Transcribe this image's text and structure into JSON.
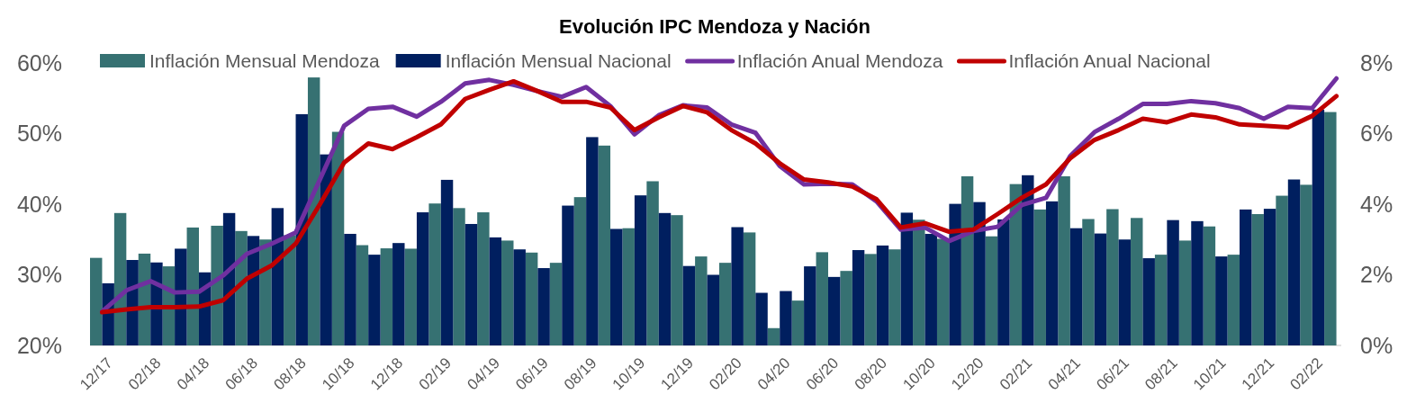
{
  "chart_data": {
    "type": "bar",
    "title": "Evolución IPC Mendoza y Nación",
    "categories": [
      "12/17",
      null,
      "02/18",
      null,
      "04/18",
      null,
      "06/18",
      null,
      "08/18",
      null,
      "10/18",
      null,
      "12/18",
      null,
      "02/19",
      null,
      "04/19",
      null,
      "06/19",
      null,
      "08/19",
      null,
      "10/19",
      null,
      "12/19",
      null,
      "02/20",
      null,
      "04/20",
      null,
      "06/20",
      null,
      "08/20",
      null,
      "10/20",
      null,
      "12/20",
      null,
      "02/21",
      null,
      "04/21",
      null,
      "06/21",
      null,
      "08/21",
      null,
      "10/21",
      null,
      "12/21",
      null,
      "02/22",
      null
    ],
    "series": [
      {
        "name": "Inflación Mensual Mendoza",
        "axis": "y2",
        "color": "#367172",
        "values": [
          2.48,
          3.75,
          2.6,
          2.24,
          3.34,
          3.39,
          3.24,
          3.0,
          3.12,
          7.59,
          6.05,
          2.84,
          2.75,
          2.74,
          4.02,
          3.89,
          3.77,
          2.97,
          2.63,
          2.34,
          4.2,
          5.66,
          3.32,
          4.65,
          3.69,
          2.52,
          2.34,
          3.2,
          0.49,
          1.27,
          2.64,
          2.11,
          2.59,
          2.72,
          3.56,
          3.02,
          4.79,
          3.09,
          4.57,
          3.85,
          4.79,
          3.58,
          3.86,
          3.61,
          2.57,
          2.97,
          3.37,
          2.57,
          3.72,
          4.24,
          4.55,
          6.61
        ]
      },
      {
        "name": "Inflación Mensual Nacional",
        "axis": "y2",
        "color": "#001f5f",
        "values": [
          1.76,
          2.42,
          2.35,
          2.74,
          2.07,
          3.75,
          3.1,
          3.89,
          6.55,
          5.41,
          3.16,
          2.57,
          2.9,
          3.77,
          4.69,
          3.44,
          3.06,
          2.72,
          2.19,
          3.96,
          5.9,
          3.3,
          4.25,
          3.75,
          2.25,
          2.0,
          3.35,
          1.49,
          1.54,
          2.24,
          1.94,
          2.7,
          2.83,
          3.76,
          3.16,
          4.01,
          4.06,
          3.57,
          4.82,
          4.08,
          3.32,
          3.17,
          3.0,
          2.47,
          3.55,
          3.52,
          2.52,
          3.85,
          3.87,
          4.7,
          6.68,
          null
        ]
      },
      {
        "name": "Inflación Anual Mendoza",
        "type": "line",
        "axis": "y",
        "color": "#7030a0",
        "values": [
          24.8,
          27.8,
          29.1,
          27.5,
          27.6,
          29.9,
          33.0,
          34.4,
          36.0,
          43.5,
          51.1,
          53.5,
          53.8,
          52.4,
          54.5,
          57.1,
          57.6,
          56.9,
          56.0,
          55.2,
          56.6,
          53.9,
          49.9,
          52.6,
          54.0,
          53.7,
          51.3,
          50.1,
          45.4,
          42.8,
          42.9,
          42.8,
          40.4,
          36.4,
          36.7,
          34.8,
          36.2,
          36.8,
          39.9,
          40.9,
          46.8,
          50.2,
          52.1,
          54.2,
          54.2,
          54.6,
          54.3,
          53.6,
          52.1,
          53.8,
          53.6,
          57.8
        ]
      },
      {
        "name": "Inflación Anual Nacional",
        "type": "line",
        "axis": "y",
        "color": "#c00000",
        "values": [
          24.7,
          25.1,
          25.4,
          25.4,
          25.5,
          26.4,
          29.5,
          31.3,
          34.4,
          40.0,
          45.9,
          48.6,
          47.8,
          49.5,
          51.3,
          54.9,
          56.2,
          57.4,
          56.0,
          54.5,
          54.5,
          53.7,
          50.5,
          52.3,
          53.9,
          53.0,
          50.5,
          48.6,
          45.8,
          43.5,
          43.1,
          42.5,
          40.7,
          36.7,
          37.3,
          36.1,
          36.4,
          38.6,
          40.9,
          42.8,
          46.5,
          49.1,
          50.5,
          52.1,
          51.6,
          52.7,
          52.3,
          51.3,
          51.1,
          50.9,
          52.5,
          55.3
        ]
      }
    ],
    "ylim": [
      20,
      60
    ],
    "yticks": [
      {
        "value": 20,
        "label": "20%"
      },
      {
        "value": 30,
        "label": "30%"
      },
      {
        "value": 40,
        "label": "40%"
      },
      {
        "value": 50,
        "label": "50%"
      },
      {
        "value": 60,
        "label": "60%"
      }
    ],
    "y2lim": [
      0,
      8
    ],
    "y2ticks": [
      {
        "value": 0,
        "label": "0%"
      },
      {
        "value": 2,
        "label": "2%"
      },
      {
        "value": 4,
        "label": "4%"
      },
      {
        "value": 6,
        "label": "6%"
      },
      {
        "value": 8,
        "label": "8%"
      }
    ],
    "legend": "top",
    "grid": false,
    "line_style": "solid",
    "marker": "none"
  }
}
